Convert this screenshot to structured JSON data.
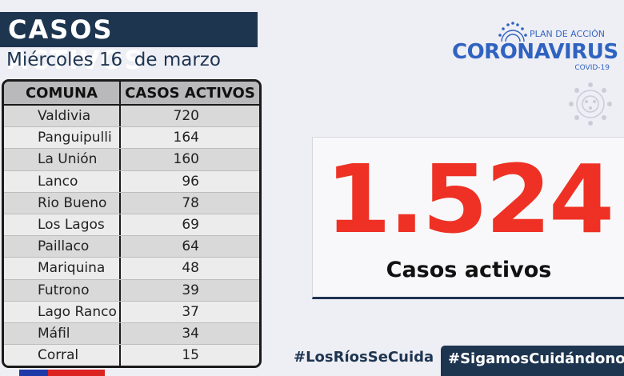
{
  "header": {
    "title": "CASOS ACTIVOS",
    "date": "Miércoles 16  de marzo"
  },
  "table": {
    "columns": [
      "COMUNA",
      "CASOS ACTIVOS"
    ],
    "rows": [
      {
        "comuna": "Valdivia",
        "casos": "720"
      },
      {
        "comuna": "Panguipulli",
        "casos": "164"
      },
      {
        "comuna": "La Unión",
        "casos": "160"
      },
      {
        "comuna": "Lanco",
        "casos": "96"
      },
      {
        "comuna": "Rio Bueno",
        "casos": "78"
      },
      {
        "comuna": "Los Lagos",
        "casos": "69"
      },
      {
        "comuna": "Paillaco",
        "casos": "64"
      },
      {
        "comuna": "Mariquina",
        "casos": "48"
      },
      {
        "comuna": "Futrono",
        "casos": "39"
      },
      {
        "comuna": "Lago Ranco",
        "casos": "37"
      },
      {
        "comuna": "Máfil",
        "casos": "34"
      },
      {
        "comuna": "Corral",
        "casos": "15"
      }
    ]
  },
  "logo": {
    "plan": "PLAN DE ACCIÓN",
    "main": "CORONAVIRUS",
    "sub": "COVID-19"
  },
  "total": {
    "value": "1.524",
    "label": "Casos activos"
  },
  "footer": {
    "hashtag_left": "#LosRíosSeCuida",
    "hashtag_right": "#SigamosCuidándonos"
  },
  "colors": {
    "navy": "#1e3550",
    "accent_red": "#ee3124",
    "brand_blue": "#2f63c0"
  }
}
